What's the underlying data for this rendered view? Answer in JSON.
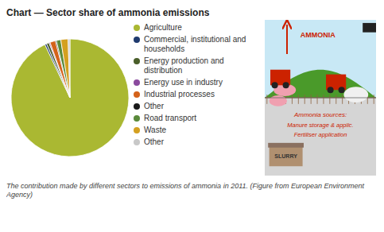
{
  "chart_data": {
    "type": "pie",
    "title": "Chart — Sector share of ammonia emissions",
    "caption": "The contribution made by different sectors to emissions of ammonia in 2011. (Figure from European Environment Agency)",
    "categories": [
      "Agriculture",
      "Commercial, institutional and\nhouseholds",
      "Energy production and\ndistribution",
      "Energy use in industry",
      "Industrial processes",
      "Other",
      "Road transport",
      "Waste",
      "Other"
    ],
    "values": [
      93.0,
      0.5,
      0.7,
      0.3,
      1.5,
      0.3,
      1.2,
      2.0,
      0.5
    ],
    "colors": [
      "#aab832",
      "#1f3a6e",
      "#4a5e2a",
      "#8b4a9e",
      "#d4621a",
      "#1a1a1a",
      "#5a8a3a",
      "#d4a020",
      "#c8c8c8"
    ],
    "legend": "right",
    "annotations": [
      "AMMONIA",
      "Ammonia sources:",
      "Manure storage & applic.",
      "Fertiliser application",
      "SLURRY"
    ]
  }
}
